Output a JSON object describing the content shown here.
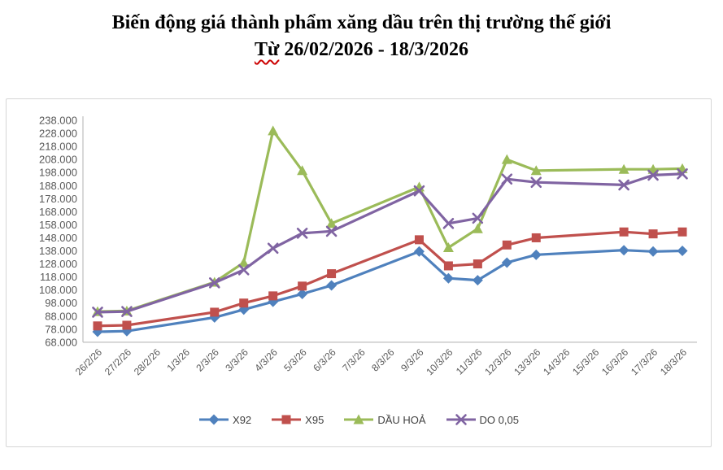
{
  "title": {
    "line1": "Biến động giá thành phẩm xăng dầu trên thị trường thế giới",
    "line2_prefix": "Từ",
    "line2_rest": " 26/02/2026 - 18/3/2026"
  },
  "chart_data": {
    "type": "line",
    "title": "Biến động giá thành phẩm xăng dầu trên thị trường thế giới",
    "subtitle": "Từ 26/02/2026 - 18/3/2026",
    "categories": [
      "26/2/26",
      "27/2/26",
      "28/2/26",
      "1/3/26",
      "2/3/26",
      "3/3/26",
      "4/3/26",
      "5/3/26",
      "6/3/26",
      "7/3/26",
      "8/3/26",
      "9/3/26",
      "10/3/26",
      "11/3/26",
      "12/3/26",
      "13/3/26",
      "14/3/26",
      "15/3/26",
      "16/3/26",
      "17/3/26",
      "18/3/26"
    ],
    "series": [
      {
        "name": "X92",
        "color": "#4F81BD",
        "marker": "diamond",
        "values": [
          76000,
          76500,
          null,
          null,
          87000,
          93000,
          99000,
          105000,
          111500,
          null,
          null,
          137500,
          117000,
          115500,
          129000,
          135000,
          null,
          null,
          138500,
          137500,
          138000
        ]
      },
      {
        "name": "X95",
        "color": "#C0504D",
        "marker": "square",
        "values": [
          80500,
          81000,
          null,
          null,
          91000,
          98000,
          103500,
          111000,
          120500,
          null,
          null,
          146500,
          126500,
          128000,
          142500,
          148000,
          null,
          null,
          152500,
          151000,
          152500
        ]
      },
      {
        "name": "DẦU HOẢ",
        "color": "#9BBB59",
        "marker": "triangle",
        "values": [
          91500,
          92000,
          null,
          null,
          114000,
          129000,
          230000,
          199500,
          159000,
          null,
          null,
          187000,
          140500,
          155000,
          208000,
          199500,
          null,
          null,
          200500,
          200500,
          201000
        ]
      },
      {
        "name": "DO 0,05",
        "color": "#8064A2",
        "marker": "x",
        "values": [
          91000,
          91500,
          null,
          null,
          113500,
          123500,
          140000,
          151500,
          153000,
          null,
          null,
          184000,
          159000,
          163000,
          193000,
          190500,
          null,
          null,
          188500,
          196000,
          197000
        ]
      }
    ],
    "ylim": [
      68000,
      238000
    ],
    "ytick_step": 10000,
    "y_tick_labels": [
      "238.000",
      "228.000",
      "218.000",
      "208.000",
      "198.000",
      "188.000",
      "178.000",
      "168.000",
      "158.000",
      "148.000",
      "138.000",
      "128.000",
      "118.000",
      "108.000",
      "98.000",
      "88.000",
      "78.000",
      "68.000"
    ],
    "grid": false,
    "legend_position": "bottom",
    "axis_text_color": "#595959",
    "axis_line_color": "#bfbfbf",
    "legend_text_color": "#404040"
  }
}
